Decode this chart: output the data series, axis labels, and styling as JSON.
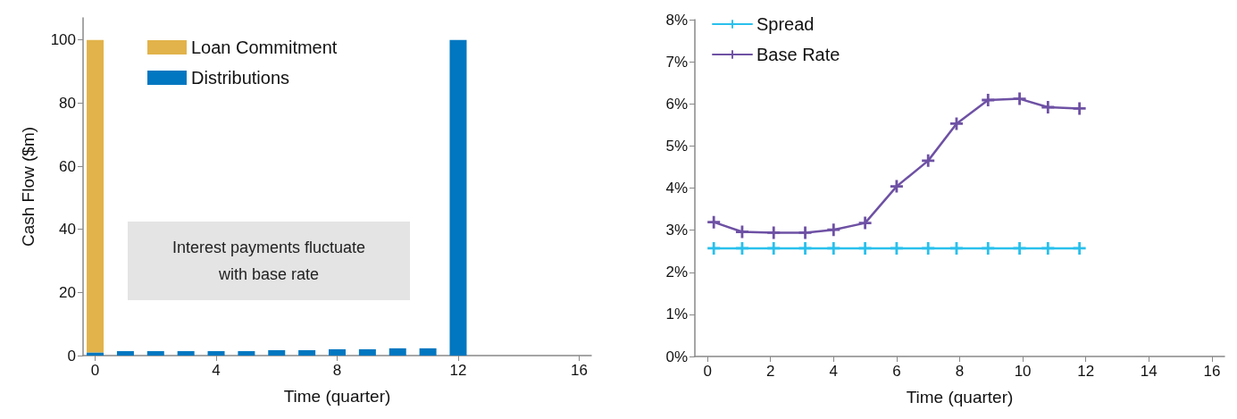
{
  "chart_data": [
    {
      "type": "bar",
      "stacked": true,
      "xlabel": "Time (quarter)",
      "ylabel": "Cash Flow ($m)",
      "xlim": [
        -0.4,
        16.4
      ],
      "xticks": [
        0,
        4,
        8,
        12,
        16
      ],
      "ylim": [
        0,
        107
      ],
      "yticks": [
        0,
        20,
        40,
        60,
        80,
        100
      ],
      "grid": false,
      "legend": "top left",
      "annotations": [
        "Interest payments fluctuate with base rate"
      ],
      "series": [
        {
          "name": "Distributions",
          "color": "#0077c0",
          "x": [
            0,
            1,
            2,
            3,
            4,
            5,
            6,
            7,
            8,
            9,
            10,
            11,
            12
          ],
          "values": [
            1,
            1.4,
            1.4,
            1.4,
            1.4,
            1.4,
            1.7,
            1.7,
            2,
            2,
            2.3,
            2.3,
            100
          ]
        },
        {
          "name": "Loan Commitment",
          "color": "#e2b34a",
          "x": [
            0
          ],
          "values": [
            99
          ]
        }
      ]
    },
    {
      "type": "line",
      "xlabel": "Time (quarter)",
      "xlim": [
        -0.4,
        16.4
      ],
      "xticks": [
        0,
        2,
        4,
        6,
        8,
        10,
        12,
        14,
        16
      ],
      "ylim": [
        0,
        8
      ],
      "yticks": [
        {
          "value": 0,
          "label": "0%"
        },
        {
          "value": 1,
          "label": "1%"
        },
        {
          "value": 2,
          "label": "2%"
        },
        {
          "value": 3,
          "label": "3%"
        },
        {
          "value": 4,
          "label": "4%"
        },
        {
          "value": 5,
          "label": "5%"
        },
        {
          "value": 6,
          "label": "6%"
        },
        {
          "value": 7,
          "label": "7%"
        },
        {
          "value": 8,
          "label": "8%"
        }
      ],
      "grid": false,
      "legend": "top left",
      "marker": "cross",
      "line_style": "solid",
      "series": [
        {
          "name": "Spread",
          "color": "#29c0ec",
          "x": [
            0.2,
            1.1,
            2.1,
            3.1,
            4.0,
            5.0,
            6.0,
            7.0,
            7.9,
            8.9,
            9.9,
            10.8,
            11.8
          ],
          "values": [
            2.57,
            2.57,
            2.57,
            2.57,
            2.57,
            2.57,
            2.57,
            2.57,
            2.57,
            2.57,
            2.57,
            2.57,
            2.57
          ]
        },
        {
          "name": "Base Rate",
          "color": "#6e51a4",
          "x": [
            0.2,
            1.1,
            2.1,
            3.1,
            4.0,
            5.0,
            6.0,
            7.0,
            7.9,
            8.9,
            9.9,
            10.8,
            11.8
          ],
          "values": [
            3.19,
            2.96,
            2.94,
            2.94,
            3.01,
            3.17,
            4.04,
            4.65,
            5.53,
            6.09,
            6.12,
            5.92,
            5.89
          ]
        }
      ]
    }
  ]
}
